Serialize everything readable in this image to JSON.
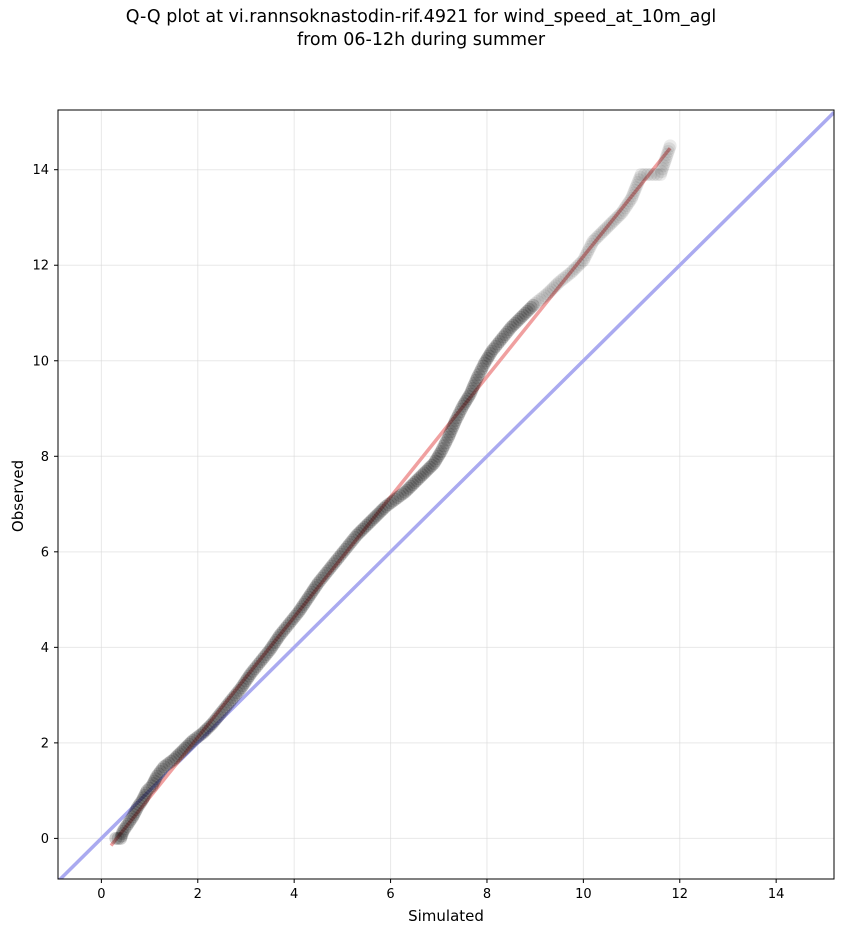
{
  "chart_data": {
    "type": "scatter",
    "title_line1": "Q-Q plot at vi.rannsoknastodin-rif.4921 for wind_speed_at_10m_agl",
    "title_line2": "from 06-12h during summer",
    "xlabel": "Simulated",
    "ylabel": "Observed",
    "xlim": [
      -0.9,
      15.2
    ],
    "ylim": [
      -0.85,
      15.25
    ],
    "xticks": [
      0,
      2,
      4,
      6,
      8,
      10,
      12,
      14
    ],
    "yticks": [
      0,
      2,
      4,
      6,
      8,
      10,
      12,
      14
    ],
    "grid": true,
    "reference_line": {
      "name": "1:1",
      "color": "#aaaaf0",
      "points": [
        [
          -0.9,
          -0.9
        ],
        [
          15.2,
          15.2
        ]
      ]
    },
    "fit_line": {
      "color": "#f0a0a0",
      "points": [
        [
          0.2,
          -0.15
        ],
        [
          11.8,
          14.45
        ]
      ]
    },
    "marker_color": "#000000",
    "quantiles": [
      [
        0.3,
        0.0
      ],
      [
        0.4,
        0.0
      ],
      [
        0.45,
        0.15
      ],
      [
        0.55,
        0.3
      ],
      [
        0.65,
        0.45
      ],
      [
        0.75,
        0.65
      ],
      [
        0.85,
        0.8
      ],
      [
        0.95,
        1.0
      ],
      [
        1.05,
        1.1
      ],
      [
        1.15,
        1.3
      ],
      [
        1.3,
        1.5
      ],
      [
        1.5,
        1.65
      ],
      [
        1.7,
        1.85
      ],
      [
        1.9,
        2.05
      ],
      [
        2.1,
        2.2
      ],
      [
        2.3,
        2.4
      ],
      [
        2.5,
        2.65
      ],
      [
        2.7,
        2.9
      ],
      [
        2.9,
        3.15
      ],
      [
        3.1,
        3.45
      ],
      [
        3.3,
        3.7
      ],
      [
        3.5,
        3.95
      ],
      [
        3.7,
        4.25
      ],
      [
        3.9,
        4.5
      ],
      [
        4.1,
        4.75
      ],
      [
        4.3,
        5.05
      ],
      [
        4.5,
        5.35
      ],
      [
        4.7,
        5.6
      ],
      [
        4.9,
        5.85
      ],
      [
        5.1,
        6.1
      ],
      [
        5.3,
        6.35
      ],
      [
        5.5,
        6.55
      ],
      [
        5.7,
        6.75
      ],
      [
        5.9,
        6.95
      ],
      [
        6.1,
        7.1
      ],
      [
        6.3,
        7.25
      ],
      [
        6.5,
        7.45
      ],
      [
        6.7,
        7.65
      ],
      [
        6.9,
        7.85
      ],
      [
        7.05,
        8.1
      ],
      [
        7.2,
        8.4
      ],
      [
        7.35,
        8.75
      ],
      [
        7.5,
        9.05
      ],
      [
        7.65,
        9.3
      ],
      [
        7.8,
        9.65
      ],
      [
        7.95,
        9.95
      ],
      [
        8.1,
        10.2
      ],
      [
        8.3,
        10.45
      ],
      [
        8.5,
        10.7
      ],
      [
        8.75,
        10.95
      ],
      [
        9.0,
        11.2
      ],
      [
        9.25,
        11.4
      ],
      [
        9.5,
        11.65
      ],
      [
        9.75,
        11.85
      ],
      [
        10.0,
        12.1
      ],
      [
        10.2,
        12.5
      ],
      [
        10.4,
        12.7
      ],
      [
        10.6,
        12.9
      ],
      [
        10.8,
        13.1
      ],
      [
        11.0,
        13.4
      ],
      [
        11.2,
        13.9
      ],
      [
        11.6,
        13.9
      ],
      [
        11.7,
        14.2
      ],
      [
        11.8,
        14.5
      ]
    ]
  }
}
